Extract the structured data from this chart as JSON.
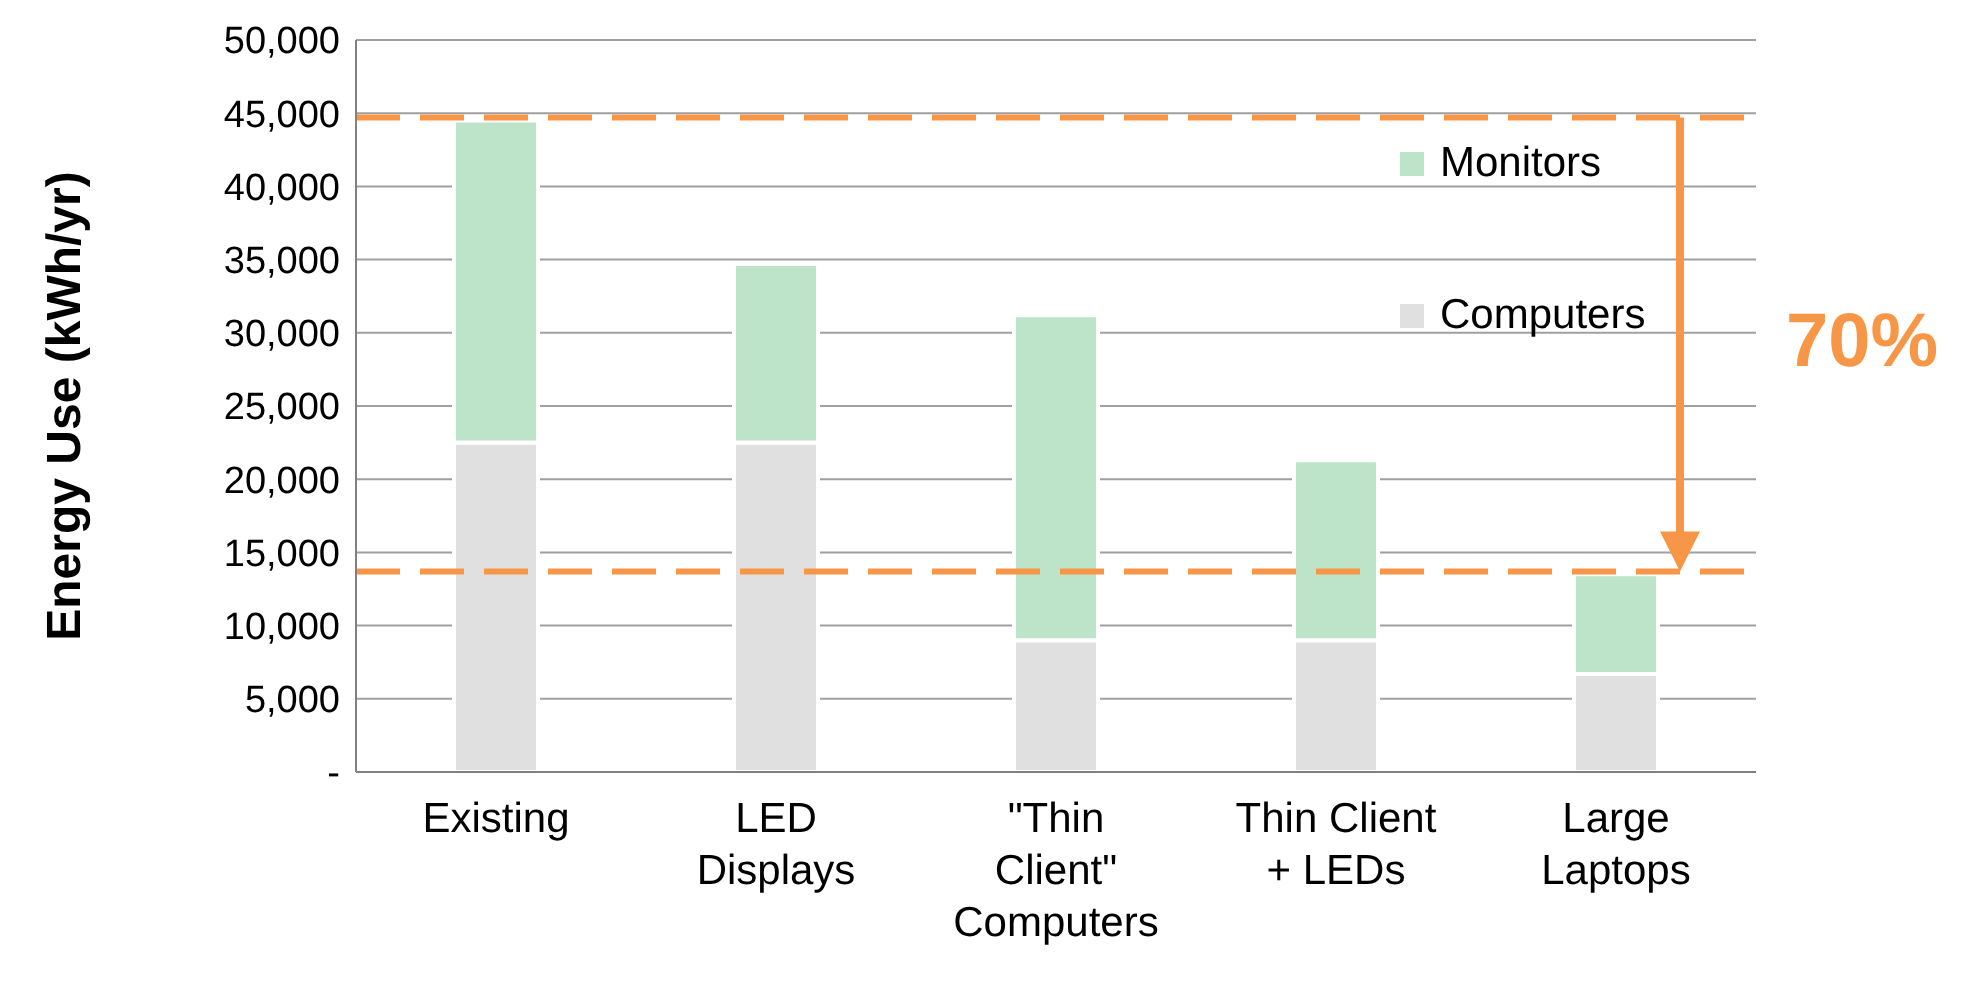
{
  "chart_data": {
    "type": "bar",
    "stacked": true,
    "ylabel": "Energy Use (kWh/yr)",
    "categories": [
      "Existing",
      "LED Displays",
      "\"Thin Client\" Computers",
      "Thin Client + LEDs",
      "Large Laptops"
    ],
    "series": [
      {
        "name": "Computers",
        "color": "#e0e0e0",
        "values": [
          22500,
          22500,
          9000,
          9000,
          6700
        ]
      },
      {
        "name": "Monitors",
        "color": "#bde3c8",
        "values": [
          22000,
          12200,
          22200,
          12300,
          6800
        ]
      }
    ],
    "ylim": [
      0,
      50000
    ],
    "yticks": [
      {
        "value": 0,
        "label": "-"
      },
      {
        "value": 5000,
        "label": "5,000"
      },
      {
        "value": 10000,
        "label": "10,000"
      },
      {
        "value": 15000,
        "label": "15,000"
      },
      {
        "value": 20000,
        "label": "20,000"
      },
      {
        "value": 25000,
        "label": "25,000"
      },
      {
        "value": 30000,
        "label": "30,000"
      },
      {
        "value": 35000,
        "label": "35,000"
      },
      {
        "value": 40000,
        "label": "40,000"
      },
      {
        "value": 45000,
        "label": "45,000"
      },
      {
        "value": 50000,
        "label": "50,000"
      }
    ],
    "grid": "y",
    "legend": "top right",
    "ref_lines": [
      {
        "axis": "y",
        "value": 44700,
        "color": "#f79646",
        "line_style": "dashed"
      },
      {
        "axis": "y",
        "value": 13700,
        "color": "#f79646",
        "line_style": "dashed"
      }
    ],
    "annotations": [
      "70%"
    ]
  }
}
